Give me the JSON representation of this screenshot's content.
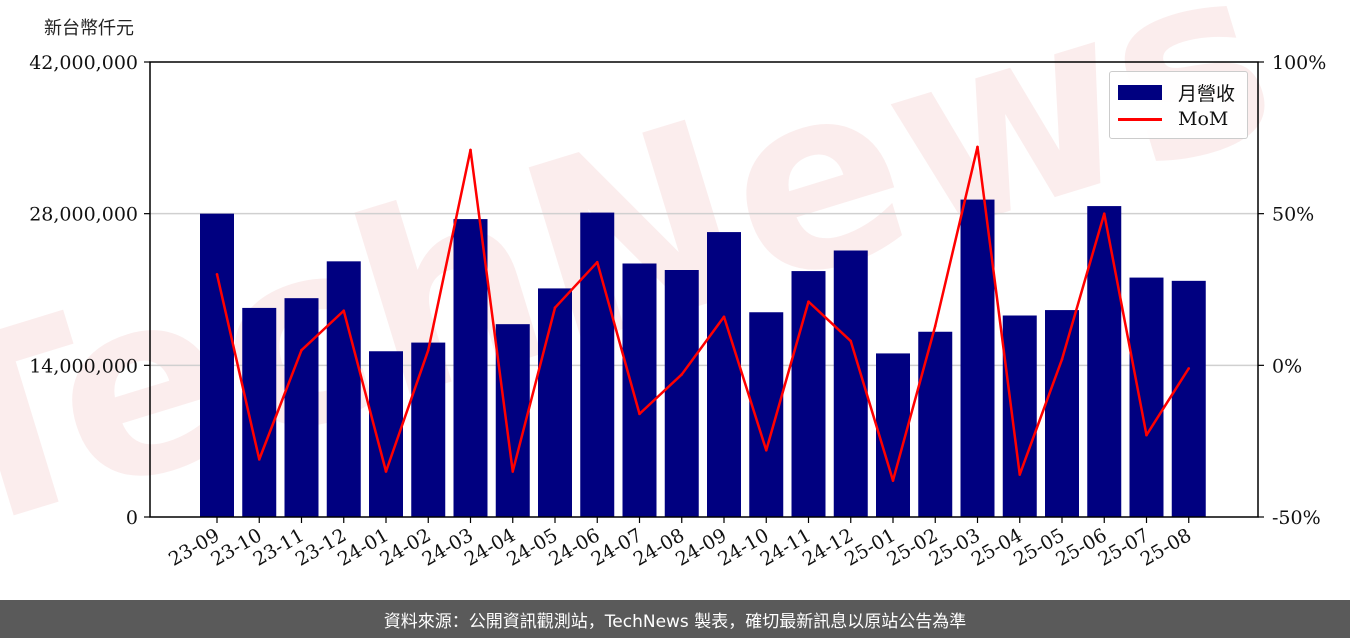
{
  "y_unit_label": "新台幣仟元",
  "footer_text": "資料來源：公開資訊觀測站，TechNews 製表，確切最新訊息以原站公告為準",
  "watermark_text": "TechNews",
  "chart_data": {
    "type": "bar+line",
    "categories": [
      "23-09",
      "23-10",
      "23-11",
      "23-12",
      "24-01",
      "24-02",
      "24-03",
      "24-04",
      "24-05",
      "24-06",
      "24-07",
      "24-08",
      "24-09",
      "24-10",
      "24-11",
      "24-12",
      "25-01",
      "25-02",
      "25-03",
      "25-04",
      "25-05",
      "25-06",
      "25-07",
      "25-08"
    ],
    "series": [
      {
        "name": "月營收",
        "type": "bar",
        "axis": "left",
        "color": "#000080",
        "values": [
          28000000,
          19300000,
          20200000,
          23600000,
          15300000,
          16100000,
          27500000,
          17800000,
          21100000,
          28100000,
          23400000,
          22800000,
          26300000,
          18900000,
          22700000,
          24600000,
          15100000,
          17100000,
          29300000,
          18600000,
          19100000,
          28700000,
          22100000,
          21800000
        ]
      },
      {
        "name": "MoM",
        "type": "line",
        "axis": "right",
        "color": "#ff0000",
        "values": [
          30,
          -31,
          5,
          18,
          -35,
          5,
          71,
          -35,
          19,
          34,
          -16,
          -3,
          16,
          -28,
          21,
          8,
          -38,
          13,
          72,
          -36,
          2,
          50,
          -23,
          -1
        ]
      }
    ],
    "y_left": {
      "min": 0,
      "max": 42000000,
      "ticks": [
        0,
        14000000,
        28000000,
        42000000
      ],
      "tick_labels": [
        "0",
        "14,000,000",
        "28,000,000",
        "42,000,000"
      ]
    },
    "y_right": {
      "min": -50,
      "max": 100,
      "ticks": [
        -50,
        0,
        50,
        100
      ],
      "tick_labels": [
        "-50%",
        "0%",
        "50%",
        "100%"
      ]
    },
    "grid": "horizontal",
    "legend_position": "top-right"
  }
}
